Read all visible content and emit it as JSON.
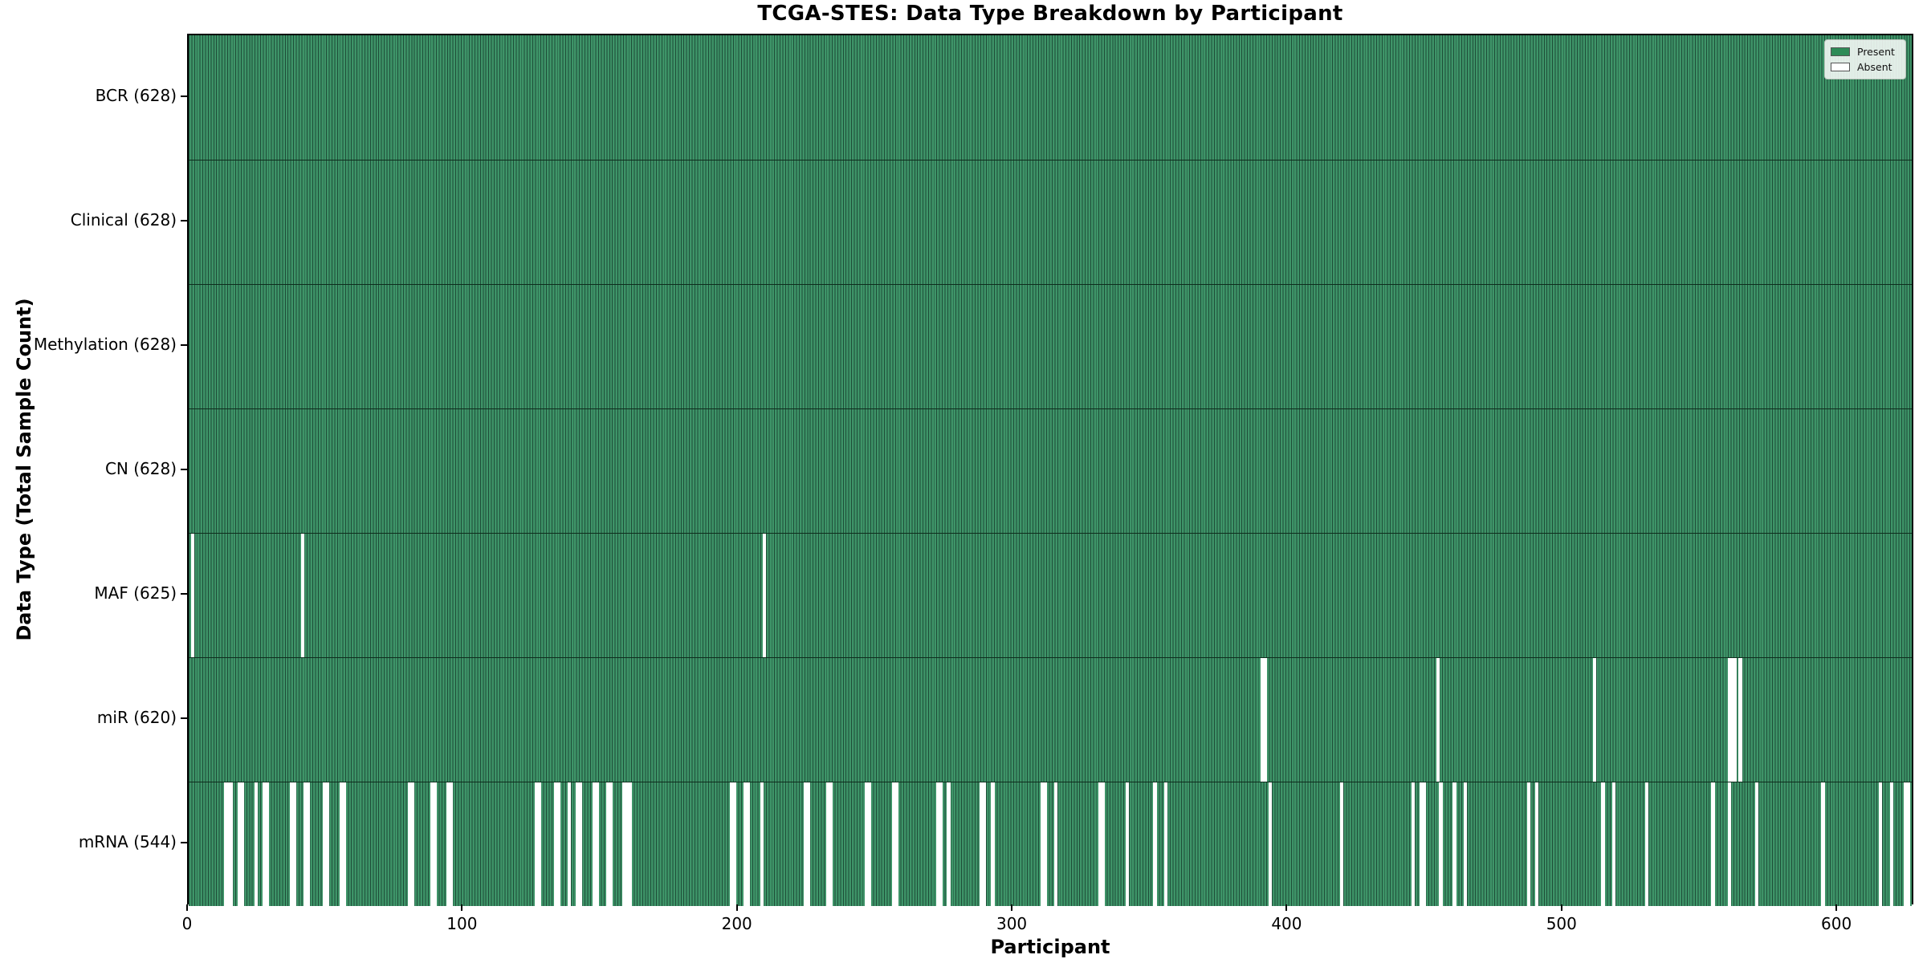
{
  "title": "TCGA-STES: Data Type Breakdown by Participant",
  "x_axis": {
    "label": "Participant",
    "ticks": [
      0,
      100,
      200,
      300,
      400,
      500,
      600
    ]
  },
  "y_axis": {
    "label": "Data Type (Total Sample Count)"
  },
  "legend": {
    "present_label": "Present",
    "absent_label": "Absent",
    "position": "upper-right"
  },
  "colors": {
    "present_fill": "#3E9468",
    "present_swatch": "#2E8B57",
    "bar_edge": "#1E4D38",
    "absent_fill": "#FFFFFF",
    "row_separator": "#0E2D1D",
    "axis_text": "#000000"
  },
  "chart_data": {
    "type": "heatmap",
    "title": "TCGA-STES: Data Type Breakdown by Participant",
    "xlabel": "Participant",
    "ylabel": "Data Type (Total Sample Count)",
    "x_range": [
      0,
      628
    ],
    "total_participants": 628,
    "legend_entries": [
      "Present",
      "Absent"
    ],
    "rows": [
      {
        "name": "BCR",
        "label": "BCR (628)",
        "present_count": 628,
        "absent_participants": []
      },
      {
        "name": "Clinical",
        "label": "Clinical (628)",
        "present_count": 628,
        "absent_participants": []
      },
      {
        "name": "Methylation",
        "label": "Methylation (628)",
        "present_count": 628,
        "absent_participants": []
      },
      {
        "name": "CN",
        "label": "CN (628)",
        "present_count": 628,
        "absent_participants": []
      },
      {
        "name": "MAF",
        "label": "MAF (625)",
        "present_count": 625,
        "absent_participants": [
          1,
          41,
          209
        ]
      },
      {
        "name": "miR",
        "label": "miR (620)",
        "present_count": 620,
        "absent_participants": [
          390,
          391,
          454,
          511,
          560,
          561,
          562,
          564
        ]
      },
      {
        "name": "mRNA",
        "label": "mRNA (544)",
        "present_count": 544,
        "absent_participants": [
          13,
          14,
          15,
          18,
          19,
          24,
          27,
          28,
          37,
          38,
          42,
          43,
          49,
          50,
          55,
          56,
          80,
          81,
          88,
          89,
          94,
          95,
          126,
          127,
          133,
          134,
          138,
          141,
          142,
          147,
          148,
          152,
          153,
          158,
          159,
          160,
          197,
          198,
          202,
          203,
          208,
          224,
          225,
          232,
          233,
          246,
          247,
          256,
          257,
          272,
          273,
          276,
          288,
          289,
          292,
          310,
          311,
          315,
          331,
          332,
          341,
          351,
          355,
          393,
          419,
          445,
          448,
          449,
          455,
          460,
          464,
          487,
          490,
          514,
          518,
          530,
          554,
          560,
          570,
          594,
          615,
          619,
          624,
          625
        ]
      }
    ]
  }
}
